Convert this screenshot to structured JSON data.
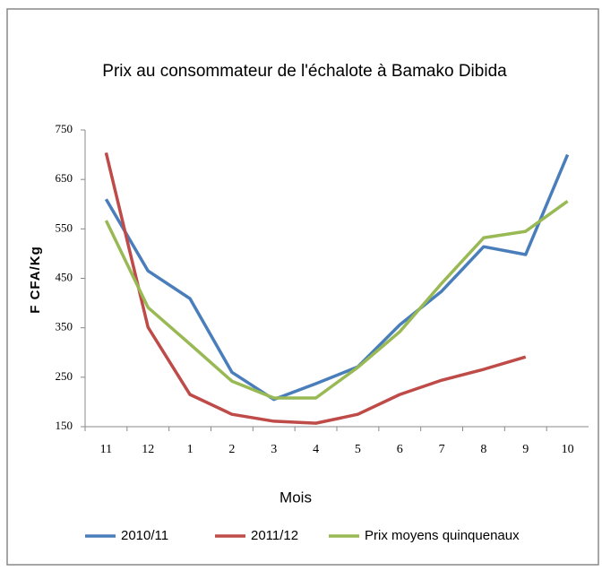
{
  "chart_data": {
    "type": "line",
    "title": "Prix au consommateur de l'échalote à Bamako Dibida",
    "x_label": "Mois",
    "y_label": "F CFA/Kg",
    "categories": [
      "11",
      "12",
      "1",
      "2",
      "3",
      "4",
      "5",
      "6",
      "7",
      "8",
      "9",
      "10"
    ],
    "series": [
      {
        "name": "2010/11",
        "color": "#4a7ebb",
        "values": [
          610,
          465,
          409,
          260,
          205,
          237,
          271,
          356,
          424,
          514,
          498,
          700
        ]
      },
      {
        "name": "2011/12",
        "color": "#be4b48",
        "values": [
          704,
          351,
          215,
          175,
          161,
          157,
          175,
          215,
          244,
          266,
          291,
          null
        ]
      },
      {
        "name": "Prix moyens quinquenaux",
        "color": "#98b954",
        "values": [
          567,
          391,
          317,
          242,
          208,
          208,
          270,
          342,
          440,
          532,
          545,
          606
        ]
      }
    ],
    "ylim": [
      150,
      750
    ],
    "yticks": [
      150,
      250,
      350,
      450,
      550,
      650,
      750
    ],
    "grid": false,
    "legend": "bottom"
  }
}
